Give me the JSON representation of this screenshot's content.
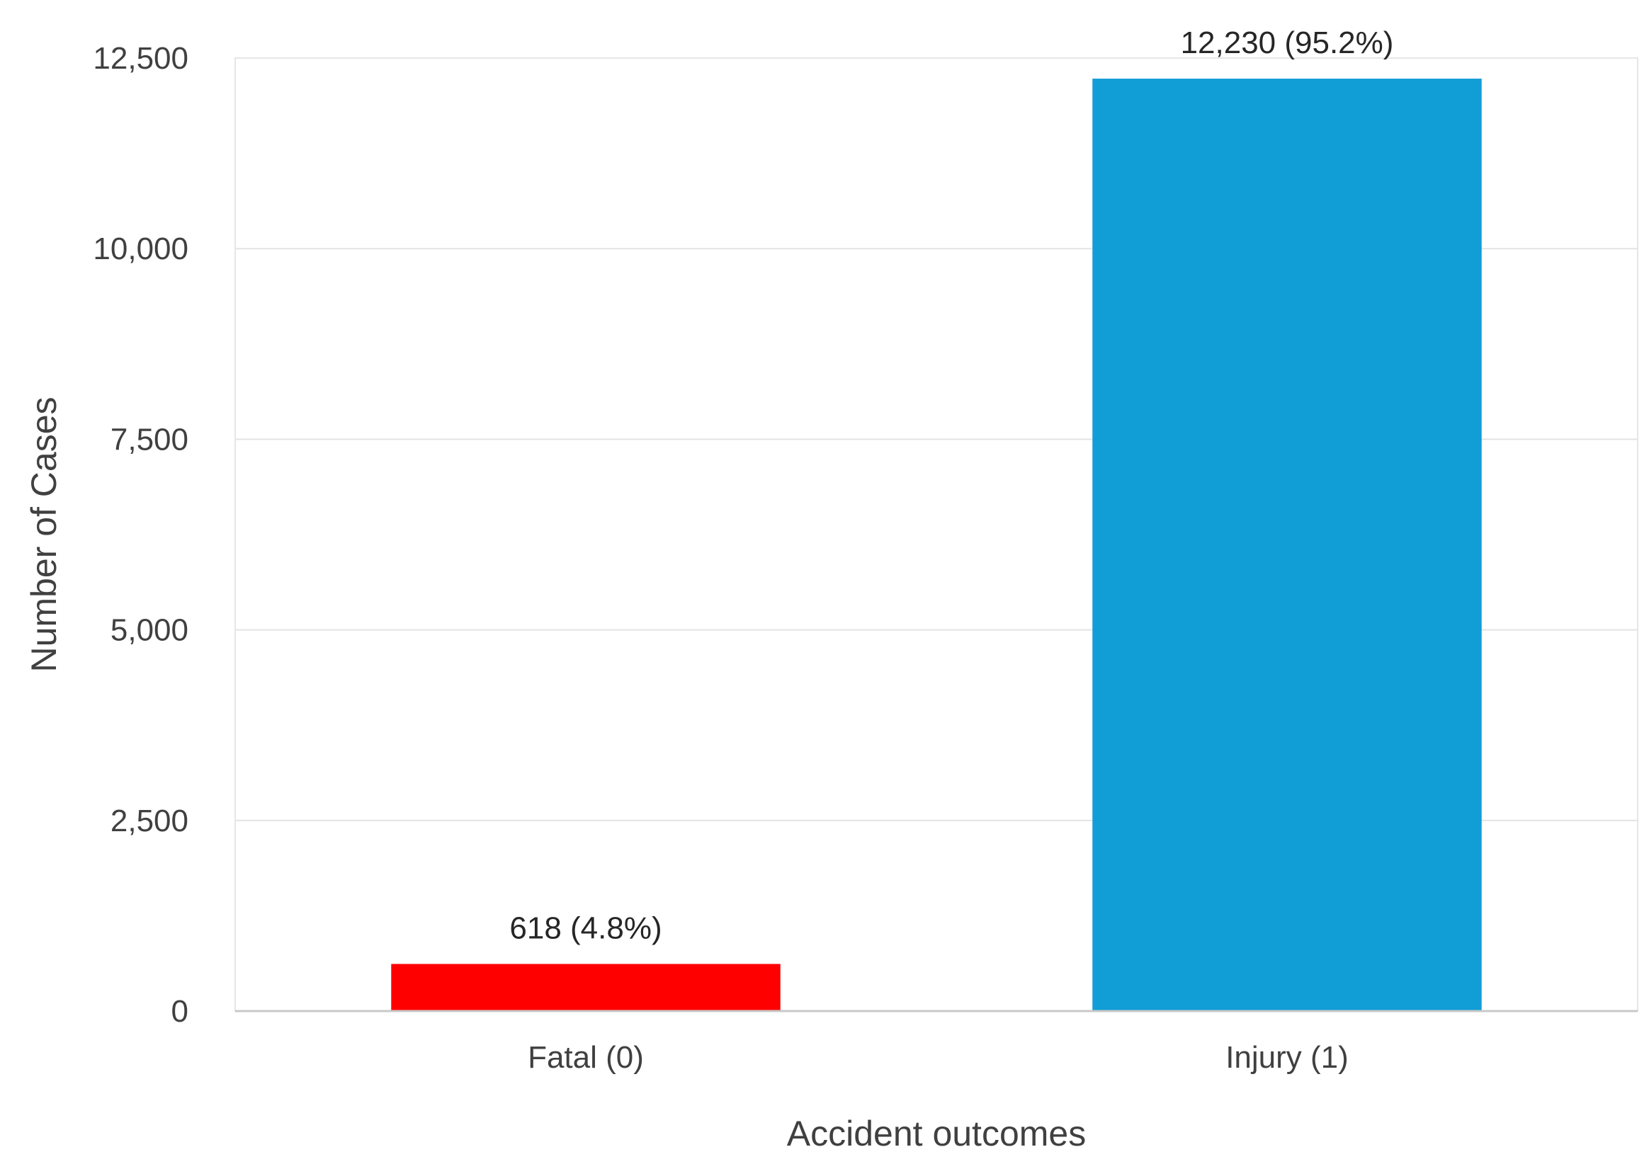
{
  "chart_data": {
    "type": "bar",
    "categories": [
      "Fatal (0)",
      "Injury (1)"
    ],
    "values": [
      618,
      12230
    ],
    "data_labels": [
      "618  (4.8%)",
      "12,230  (95.2%)"
    ],
    "colors": [
      "#ff0000",
      "#119dd6"
    ],
    "xlabel": "Accident outcomes",
    "ylabel": "Number of Cases",
    "ylim": [
      0,
      12500
    ],
    "yticks": [
      0,
      2500,
      5000,
      7500,
      10000,
      12500
    ],
    "ytick_labels": [
      "0",
      "2,500",
      "5,000",
      "7,500",
      "10,000",
      "12,500"
    ],
    "grid": true,
    "legend": "none"
  }
}
